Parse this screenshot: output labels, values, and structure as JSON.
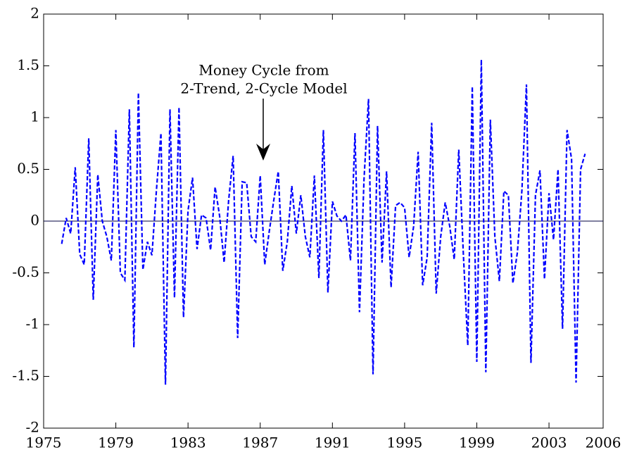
{
  "chart_data": {
    "type": "line",
    "annotation": [
      "Money Cycle from",
      "2-Trend, 2-Cycle Model"
    ],
    "x": [
      1976.0,
      1976.25,
      1976.5,
      1976.75,
      1977.0,
      1977.25,
      1977.5,
      1977.75,
      1978.0,
      1978.25,
      1978.5,
      1978.75,
      1979.0,
      1979.25,
      1979.5,
      1979.75,
      1980.0,
      1980.25,
      1980.5,
      1980.75,
      1981.0,
      1981.25,
      1981.5,
      1981.75,
      1982.0,
      1982.25,
      1982.5,
      1982.75,
      1983.0,
      1983.25,
      1983.5,
      1983.75,
      1984.0,
      1984.25,
      1984.5,
      1984.75,
      1985.0,
      1985.25,
      1985.5,
      1985.75,
      1986.0,
      1986.25,
      1986.5,
      1986.75,
      1987.0,
      1987.25,
      1987.5,
      1987.75,
      1988.0,
      1988.25,
      1988.5,
      1988.75,
      1989.0,
      1989.25,
      1989.5,
      1989.75,
      1990.0,
      1990.25,
      1990.5,
      1990.75,
      1991.0,
      1991.25,
      1991.5,
      1991.75,
      1992.0,
      1992.25,
      1992.5,
      1992.75,
      1993.0,
      1993.25,
      1993.5,
      1993.75,
      1994.0,
      1994.25,
      1994.5,
      1994.75,
      1995.0,
      1995.25,
      1995.5,
      1995.75,
      1996.0,
      1996.25,
      1996.5,
      1996.75,
      1997.0,
      1997.25,
      1997.5,
      1997.75,
      1998.0,
      1998.25,
      1998.5,
      1998.75,
      1999.0,
      1999.25,
      1999.5,
      1999.75,
      2000.0,
      2000.25,
      2000.5,
      2000.75,
      2001.0,
      2001.25,
      2001.5,
      2001.75,
      2002.0,
      2002.25,
      2002.5,
      2002.75,
      2003.0,
      2003.25,
      2003.5,
      2003.75,
      2004.0,
      2004.25,
      2004.5,
      2004.75,
      2005.0
    ],
    "values": [
      -0.22,
      0.03,
      -0.12,
      0.52,
      -0.32,
      -0.42,
      0.8,
      -0.76,
      0.45,
      0.0,
      -0.15,
      -0.38,
      0.88,
      -0.5,
      -0.57,
      1.08,
      -1.22,
      1.24,
      -0.47,
      -0.2,
      -0.33,
      0.3,
      0.85,
      -1.58,
      1.08,
      -0.74,
      1.1,
      -0.93,
      0.1,
      0.42,
      -0.27,
      0.06,
      0.03,
      -0.28,
      0.33,
      0.05,
      -0.4,
      0.2,
      0.63,
      -1.13,
      0.38,
      0.37,
      -0.15,
      -0.2,
      0.44,
      -0.42,
      -0.1,
      0.2,
      0.48,
      -0.48,
      -0.2,
      0.34,
      -0.12,
      0.25,
      -0.15,
      -0.35,
      0.44,
      -0.55,
      0.88,
      -0.69,
      0.19,
      0.05,
      0.0,
      0.06,
      -0.38,
      0.85,
      -0.88,
      0.4,
      1.18,
      -1.48,
      0.92,
      -0.4,
      0.48,
      -0.64,
      0.15,
      0.18,
      0.13,
      -0.35,
      -0.05,
      0.67,
      -0.62,
      -0.35,
      0.95,
      -0.7,
      -0.15,
      0.18,
      -0.05,
      -0.37,
      0.69,
      -0.3,
      -1.2,
      1.3,
      -1.36,
      1.56,
      -1.46,
      0.98,
      -0.15,
      -0.58,
      0.29,
      0.25,
      -0.6,
      -0.3,
      0.3,
      1.32,
      -1.37,
      0.25,
      0.49,
      -0.56,
      0.27,
      -0.18,
      0.5,
      -1.04,
      0.88,
      0.6,
      -1.56,
      0.5,
      0.65
    ],
    "color": "#0000ff",
    "dashed": true,
    "zero_line": true,
    "xlim": [
      1975,
      2006
    ],
    "xticks": [
      1975,
      1979,
      1983,
      1987,
      1991,
      1995,
      1999,
      2003,
      2006
    ],
    "ylim": [
      -2,
      2
    ],
    "yticks": [
      -2,
      -1.5,
      -1,
      -0.5,
      0,
      0.5,
      1,
      1.5,
      2
    ]
  }
}
